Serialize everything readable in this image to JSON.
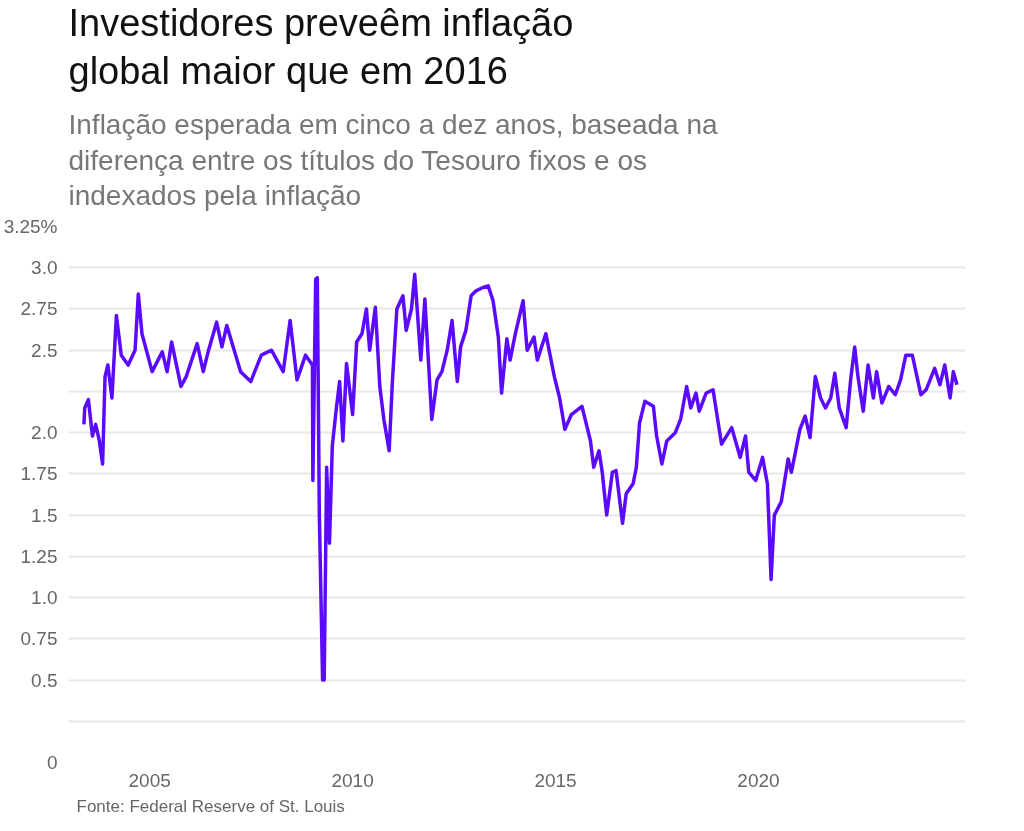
{
  "chart_data": {
    "type": "line",
    "title": "Investidores preveêm inflação global maior que em 2016",
    "subtitle": "Inflação esperada em cinco a dez anos, baseada na diferença entre os títulos do Tesouro fixos e os indexados pela inflação",
    "annotations": [
      "Fonte: Federal Reserve of St. Louis"
    ],
    "xlim": [
      2003,
      2025.1
    ],
    "xticks": [
      2005,
      2010,
      2015,
      2020
    ],
    "ylim": [
      0,
      3.25
    ],
    "yticks": [
      0,
      {
        "value": 0.25,
        "label": null
      },
      0.5,
      0.75,
      {
        "value": 1,
        "label": "1.0"
      },
      1.25,
      1.5,
      1.75,
      {
        "value": 2,
        "label": "2.0"
      },
      {
        "value": 2.25,
        "label": null
      },
      2.5,
      2.75,
      {
        "value": 3,
        "label": "3.0"
      },
      {
        "value": 3.25,
        "label": "3.25%"
      }
    ],
    "grid": "y",
    "marker": "none",
    "line_style": "solid",
    "series": [
      {
        "color": "#5a0bff",
        "x": [
          2003.38,
          2003.4,
          2003.49,
          2003.59,
          2003.67,
          2003.76,
          2003.84,
          2003.9,
          2003.97,
          2004.07,
          2004.18,
          2004.3,
          2004.47,
          2004.64,
          2004.72,
          2004.81,
          2005.06,
          2005.31,
          2005.43,
          2005.54,
          2005.77,
          2005.9,
          2006.17,
          2006.32,
          2006.44,
          2006.65,
          2006.78,
          2006.9,
          2007.24,
          2007.49,
          2007.75,
          2008.0,
          2008.29,
          2008.46,
          2008.63,
          2008.84,
          2009.01,
          2009.02,
          2009.09,
          2009.13,
          2009.18,
          2009.22,
          2009.26,
          2009.3,
          2009.36,
          2009.43,
          2009.5,
          2009.6,
          2009.68,
          2009.76,
          2009.85,
          2010.0,
          2010.1,
          2010.23,
          2010.34,
          2010.42,
          2010.56,
          2010.67,
          2010.77,
          2010.9,
          2010.98,
          2011.09,
          2011.24,
          2011.32,
          2011.45,
          2011.53,
          2011.68,
          2011.78,
          2011.95,
          2012.08,
          2012.2,
          2012.33,
          2012.45,
          2012.58,
          2012.66,
          2012.79,
          2012.92,
          2013.04,
          2013.21,
          2013.34,
          2013.46,
          2013.59,
          2013.67,
          2013.8,
          2013.88,
          2014.01,
          2014.2,
          2014.3,
          2014.47,
          2014.55,
          2014.76,
          2014.97,
          2015.1,
          2015.23,
          2015.39,
          2015.65,
          2015.86,
          2015.94,
          2016.07,
          2016.15,
          2016.26,
          2016.4,
          2016.49,
          2016.65,
          2016.74,
          2016.91,
          2016.99,
          2017.07,
          2017.2,
          2017.41,
          2017.49,
          2017.62,
          2017.74,
          2017.95,
          2018.08,
          2018.23,
          2018.33,
          2018.46,
          2018.54,
          2018.71,
          2018.88,
          2019.09,
          2019.34,
          2019.55,
          2019.68,
          2019.76,
          2019.93,
          2020.1,
          2020.22,
          2020.31,
          2020.39,
          2020.56,
          2020.73,
          2020.81,
          2020.9,
          2021.02,
          2021.15,
          2021.27,
          2021.4,
          2021.53,
          2021.65,
          2021.78,
          2021.88,
          2021.99,
          2022.16,
          2022.27,
          2022.37,
          2022.45,
          2022.58,
          2022.7,
          2022.83,
          2022.91,
          2023.04,
          2023.21,
          2023.37,
          2023.5,
          2023.63,
          2023.79,
          2024.0,
          2024.13,
          2024.34,
          2024.47,
          2024.59,
          2024.72,
          2024.8,
          2024.89
        ],
        "values": [
          2.05,
          2.15,
          2.2,
          1.98,
          2.05,
          1.95,
          1.81,
          2.34,
          2.41,
          2.21,
          2.71,
          2.47,
          2.41,
          2.5,
          2.84,
          2.6,
          2.37,
          2.49,
          2.37,
          2.55,
          2.28,
          2.34,
          2.54,
          2.37,
          2.49,
          2.67,
          2.52,
          2.65,
          2.37,
          2.31,
          2.47,
          2.5,
          2.37,
          2.68,
          2.32,
          2.47,
          2.41,
          1.71,
          2.93,
          2.94,
          1.5,
          1.0,
          0.5,
          0.5,
          1.79,
          1.33,
          1.92,
          2.15,
          2.31,
          1.95,
          2.42,
          2.11,
          2.55,
          2.6,
          2.75,
          2.5,
          2.76,
          2.28,
          2.08,
          1.89,
          2.31,
          2.75,
          2.83,
          2.62,
          2.75,
          2.96,
          2.44,
          2.81,
          2.08,
          2.32,
          2.37,
          2.5,
          2.68,
          2.31,
          2.52,
          2.62,
          2.83,
          2.86,
          2.88,
          2.89,
          2.8,
          2.58,
          2.24,
          2.57,
          2.44,
          2.6,
          2.8,
          2.5,
          2.58,
          2.44,
          2.6,
          2.34,
          2.21,
          2.02,
          2.11,
          2.16,
          1.95,
          1.79,
          1.89,
          1.76,
          1.5,
          1.76,
          1.77,
          1.45,
          1.63,
          1.69,
          1.79,
          2.06,
          2.19,
          2.16,
          1.98,
          1.81,
          1.95,
          2.0,
          2.08,
          2.28,
          2.15,
          2.24,
          2.13,
          2.24,
          2.26,
          1.93,
          2.03,
          1.85,
          1.98,
          1.76,
          1.71,
          1.85,
          1.69,
          1.11,
          1.5,
          1.58,
          1.84,
          1.76,
          1.87,
          2.02,
          2.1,
          1.97,
          2.34,
          2.21,
          2.15,
          2.21,
          2.36,
          2.15,
          2.03,
          2.32,
          2.52,
          2.34,
          2.13,
          2.41,
          2.21,
          2.37,
          2.18,
          2.28,
          2.23,
          2.32,
          2.47,
          2.47,
          2.23,
          2.26,
          2.39,
          2.29,
          2.41,
          2.21,
          2.37,
          2.29
        ]
      }
    ]
  }
}
